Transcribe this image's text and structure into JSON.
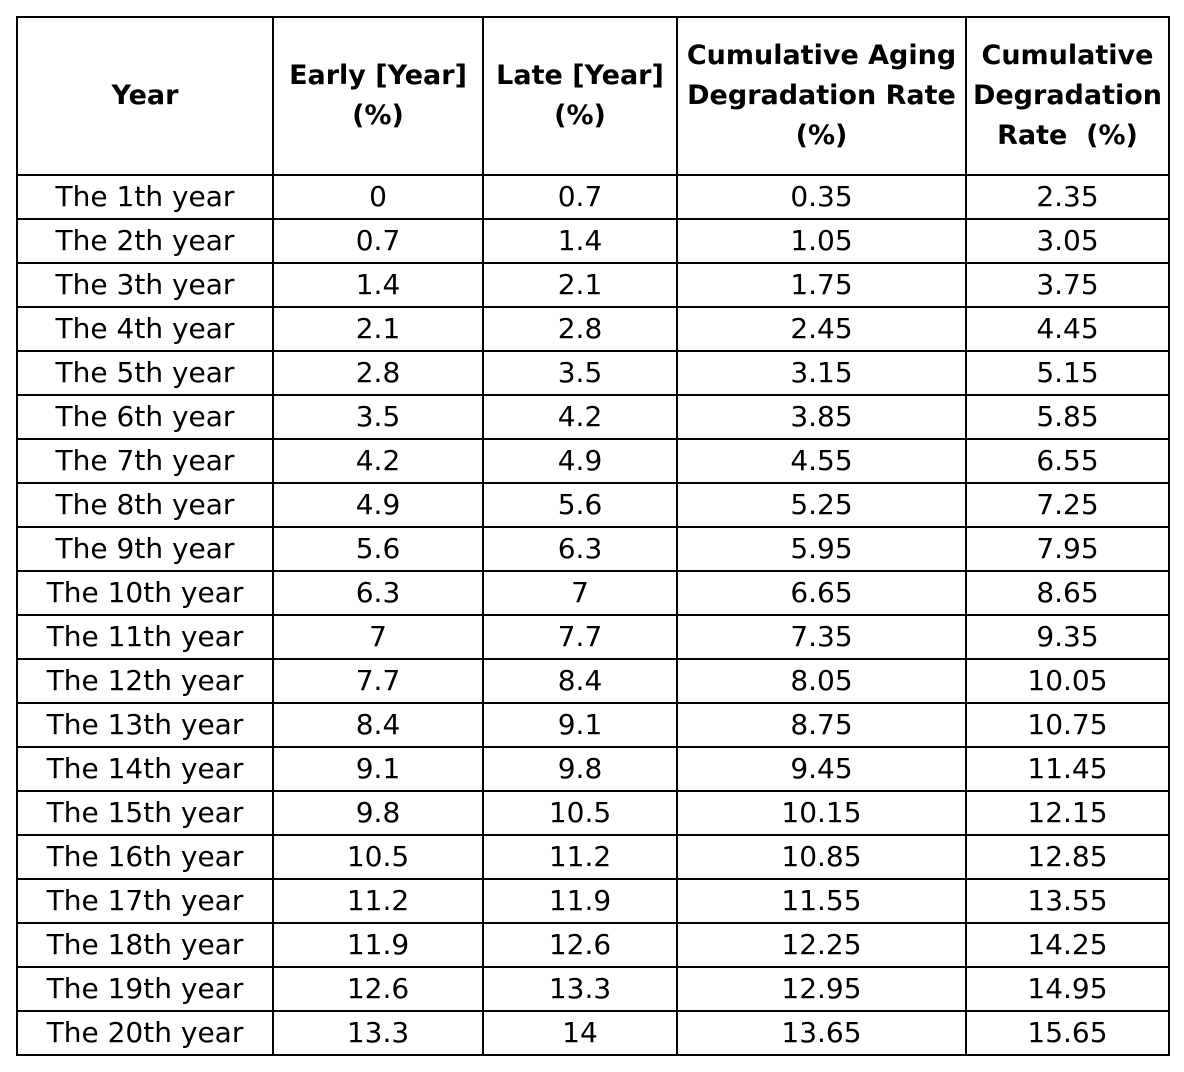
{
  "table": {
    "headers": [
      [
        "Year"
      ],
      [
        "Early [Year]",
        "(%)"
      ],
      [
        "Late [Year]",
        "(%)"
      ],
      [
        "Cumulative Aging",
        "Degradation Rate",
        "(%)"
      ],
      [
        "Cumulative",
        "Degradation",
        "Rate  (%)"
      ]
    ],
    "rows": [
      [
        "The 1th year",
        "0",
        "0.7",
        "0.35",
        "2.35"
      ],
      [
        "The 2th year",
        "0.7",
        "1.4",
        "1.05",
        "3.05"
      ],
      [
        "The 3th year",
        "1.4",
        "2.1",
        "1.75",
        "3.75"
      ],
      [
        "The 4th year",
        "2.1",
        "2.8",
        "2.45",
        "4.45"
      ],
      [
        "The 5th year",
        "2.8",
        "3.5",
        "3.15",
        "5.15"
      ],
      [
        "The 6th year",
        "3.5",
        "4.2",
        "3.85",
        "5.85"
      ],
      [
        "The 7th year",
        "4.2",
        "4.9",
        "4.55",
        "6.55"
      ],
      [
        "The 8th year",
        "4.9",
        "5.6",
        "5.25",
        "7.25"
      ],
      [
        "The 9th year",
        "5.6",
        "6.3",
        "5.95",
        "7.95"
      ],
      [
        "The 10th year",
        "6.3",
        "7",
        "6.65",
        "8.65"
      ],
      [
        "The 11th year",
        "7",
        "7.7",
        "7.35",
        "9.35"
      ],
      [
        "The 12th year",
        "7.7",
        "8.4",
        "8.05",
        "10.05"
      ],
      [
        "The 13th year",
        "8.4",
        "9.1",
        "8.75",
        "10.75"
      ],
      [
        "The 14th year",
        "9.1",
        "9.8",
        "9.45",
        "11.45"
      ],
      [
        "The 15th year",
        "9.8",
        "10.5",
        "10.15",
        "12.15"
      ],
      [
        "The 16th year",
        "10.5",
        "11.2",
        "10.85",
        "12.85"
      ],
      [
        "The 17th year",
        "11.2",
        "11.9",
        "11.55",
        "13.55"
      ],
      [
        "The 18th year",
        "11.9",
        "12.6",
        "12.25",
        "14.25"
      ],
      [
        "The 19th year",
        "12.6",
        "13.3",
        "12.95",
        "14.95"
      ],
      [
        "The 20th year",
        "13.3",
        "14",
        "13.65",
        "15.65"
      ]
    ]
  }
}
